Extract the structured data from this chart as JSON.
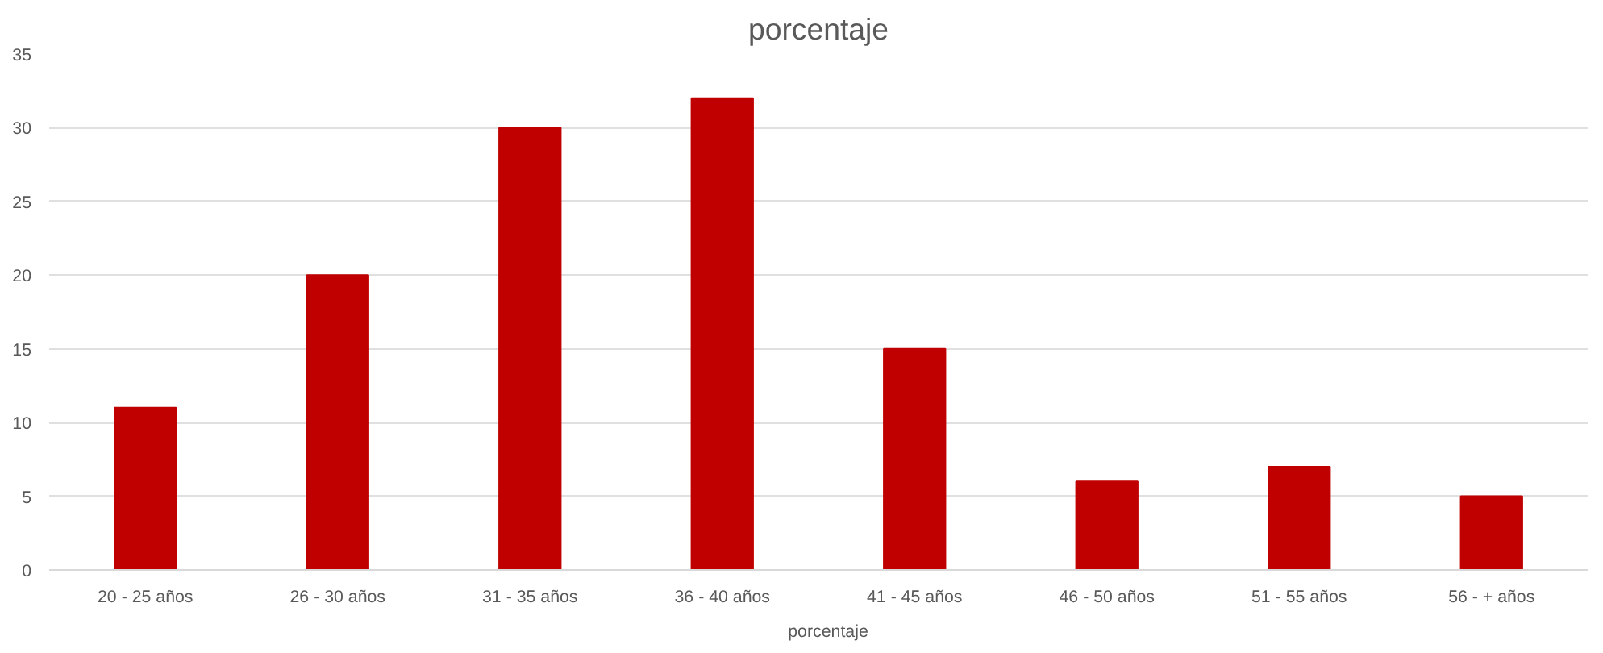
{
  "chart_data": {
    "type": "bar",
    "title": "porcentaje",
    "categories": [
      "20 - 25 años",
      "26 - 30 años",
      "31 - 35 años",
      "36 - 40 años",
      "41 - 45 años",
      "46 - 50 años",
      "51 - 55 años",
      "56 - + años"
    ],
    "series": [
      {
        "name": "porcentaje",
        "color": "#c00000",
        "values": [
          11,
          20,
          30,
          32,
          15,
          6,
          7,
          5
        ]
      }
    ],
    "ylim": [
      0,
      35
    ],
    "yticks": [
      0,
      5,
      10,
      15,
      20,
      25,
      30,
      35
    ],
    "grid": "y",
    "legend": "bottom"
  }
}
